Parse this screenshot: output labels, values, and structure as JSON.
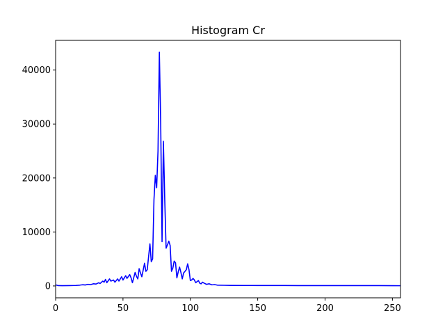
{
  "chart_data": {
    "type": "line",
    "title": "Histogram Cr",
    "xlabel": "",
    "ylabel": "",
    "xlim": [
      0,
      256
    ],
    "ylim": [
      -2200,
      45500
    ],
    "x_ticks": [
      0,
      50,
      100,
      150,
      200,
      250
    ],
    "y_ticks": [
      0,
      10000,
      20000,
      30000,
      40000
    ],
    "grid": false,
    "series": [
      {
        "color": "#0000ff",
        "points": [
          [
            0,
            200
          ],
          [
            2,
            60
          ],
          [
            5,
            50
          ],
          [
            10,
            60
          ],
          [
            15,
            90
          ],
          [
            18,
            150
          ],
          [
            20,
            220
          ],
          [
            22,
            180
          ],
          [
            24,
            300
          ],
          [
            26,
            250
          ],
          [
            28,
            400
          ],
          [
            30,
            350
          ],
          [
            32,
            600
          ],
          [
            33,
            450
          ],
          [
            35,
            900
          ],
          [
            36,
            700
          ],
          [
            37,
            1200
          ],
          [
            38,
            600
          ],
          [
            40,
            1300
          ],
          [
            41,
            900
          ],
          [
            43,
            1100
          ],
          [
            44,
            700
          ],
          [
            46,
            1300
          ],
          [
            47,
            900
          ],
          [
            49,
            1700
          ],
          [
            50,
            1100
          ],
          [
            52,
            1900
          ],
          [
            53,
            1400
          ],
          [
            55,
            2100
          ],
          [
            56,
            1500
          ],
          [
            57,
            600
          ],
          [
            59,
            2500
          ],
          [
            60,
            1800
          ],
          [
            61,
            1300
          ],
          [
            62,
            3200
          ],
          [
            63,
            2400
          ],
          [
            64,
            1700
          ],
          [
            66,
            4200
          ],
          [
            67,
            2700
          ],
          [
            68,
            3000
          ],
          [
            70,
            7800
          ],
          [
            71,
            4500
          ],
          [
            72,
            5000
          ],
          [
            73,
            16000
          ],
          [
            74,
            20500
          ],
          [
            75,
            18200
          ],
          [
            76,
            25000
          ],
          [
            77,
            43300
          ],
          [
            78,
            30000
          ],
          [
            79,
            8200
          ],
          [
            80,
            26800
          ],
          [
            81,
            16000
          ],
          [
            82,
            7000
          ],
          [
            83,
            7600
          ],
          [
            84,
            8300
          ],
          [
            85,
            7500
          ],
          [
            86,
            2700
          ],
          [
            87,
            3300
          ],
          [
            88,
            4600
          ],
          [
            89,
            4300
          ],
          [
            90,
            1500
          ],
          [
            91,
            2600
          ],
          [
            92,
            3500
          ],
          [
            93,
            2500
          ],
          [
            94,
            1300
          ],
          [
            95,
            2400
          ],
          [
            96,
            2700
          ],
          [
            97,
            3000
          ],
          [
            98,
            4100
          ],
          [
            99,
            3000
          ],
          [
            100,
            1000
          ],
          [
            101,
            1100
          ],
          [
            102,
            1400
          ],
          [
            103,
            1100
          ],
          [
            104,
            600
          ],
          [
            105,
            800
          ],
          [
            106,
            1000
          ],
          [
            107,
            500
          ],
          [
            108,
            400
          ],
          [
            109,
            700
          ],
          [
            110,
            550
          ],
          [
            112,
            300
          ],
          [
            114,
            400
          ],
          [
            116,
            200
          ],
          [
            118,
            250
          ],
          [
            120,
            150
          ],
          [
            125,
            120
          ],
          [
            130,
            100
          ],
          [
            140,
            90
          ],
          [
            150,
            80
          ],
          [
            160,
            80
          ],
          [
            170,
            80
          ],
          [
            180,
            70
          ],
          [
            190,
            70
          ],
          [
            200,
            70
          ],
          [
            210,
            70
          ],
          [
            220,
            60
          ],
          [
            230,
            60
          ],
          [
            240,
            60
          ],
          [
            250,
            50
          ],
          [
            256,
            40
          ]
        ]
      }
    ]
  }
}
